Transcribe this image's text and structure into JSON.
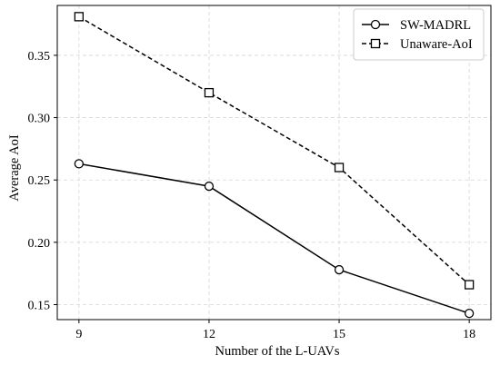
{
  "chart_data": {
    "type": "line",
    "title": "",
    "xlabel": "Number of the L-UAVs",
    "ylabel": "Average AoI",
    "x": [
      9,
      12,
      15,
      18
    ],
    "x_tick_labels": [
      "9",
      "12",
      "15",
      "18"
    ],
    "y_ticks": [
      0.15,
      0.2,
      0.25,
      0.3,
      0.35
    ],
    "y_tick_labels": [
      "0.15",
      "0.20",
      "0.25",
      "0.30",
      "0.35"
    ],
    "xlim": [
      8.5,
      18.5
    ],
    "ylim": [
      0.138,
      0.39
    ],
    "grid": true,
    "legend_position": "top-right",
    "series": [
      {
        "name": "SW-MADRL",
        "values": [
          0.263,
          0.245,
          0.178,
          0.143
        ],
        "marker": "circle",
        "line_style": "solid",
        "color": "#000000"
      },
      {
        "name": "Unaware-AoI",
        "values": [
          0.381,
          0.32,
          0.26,
          0.166
        ],
        "marker": "square",
        "line_style": "dashed",
        "color": "#000000"
      }
    ]
  }
}
